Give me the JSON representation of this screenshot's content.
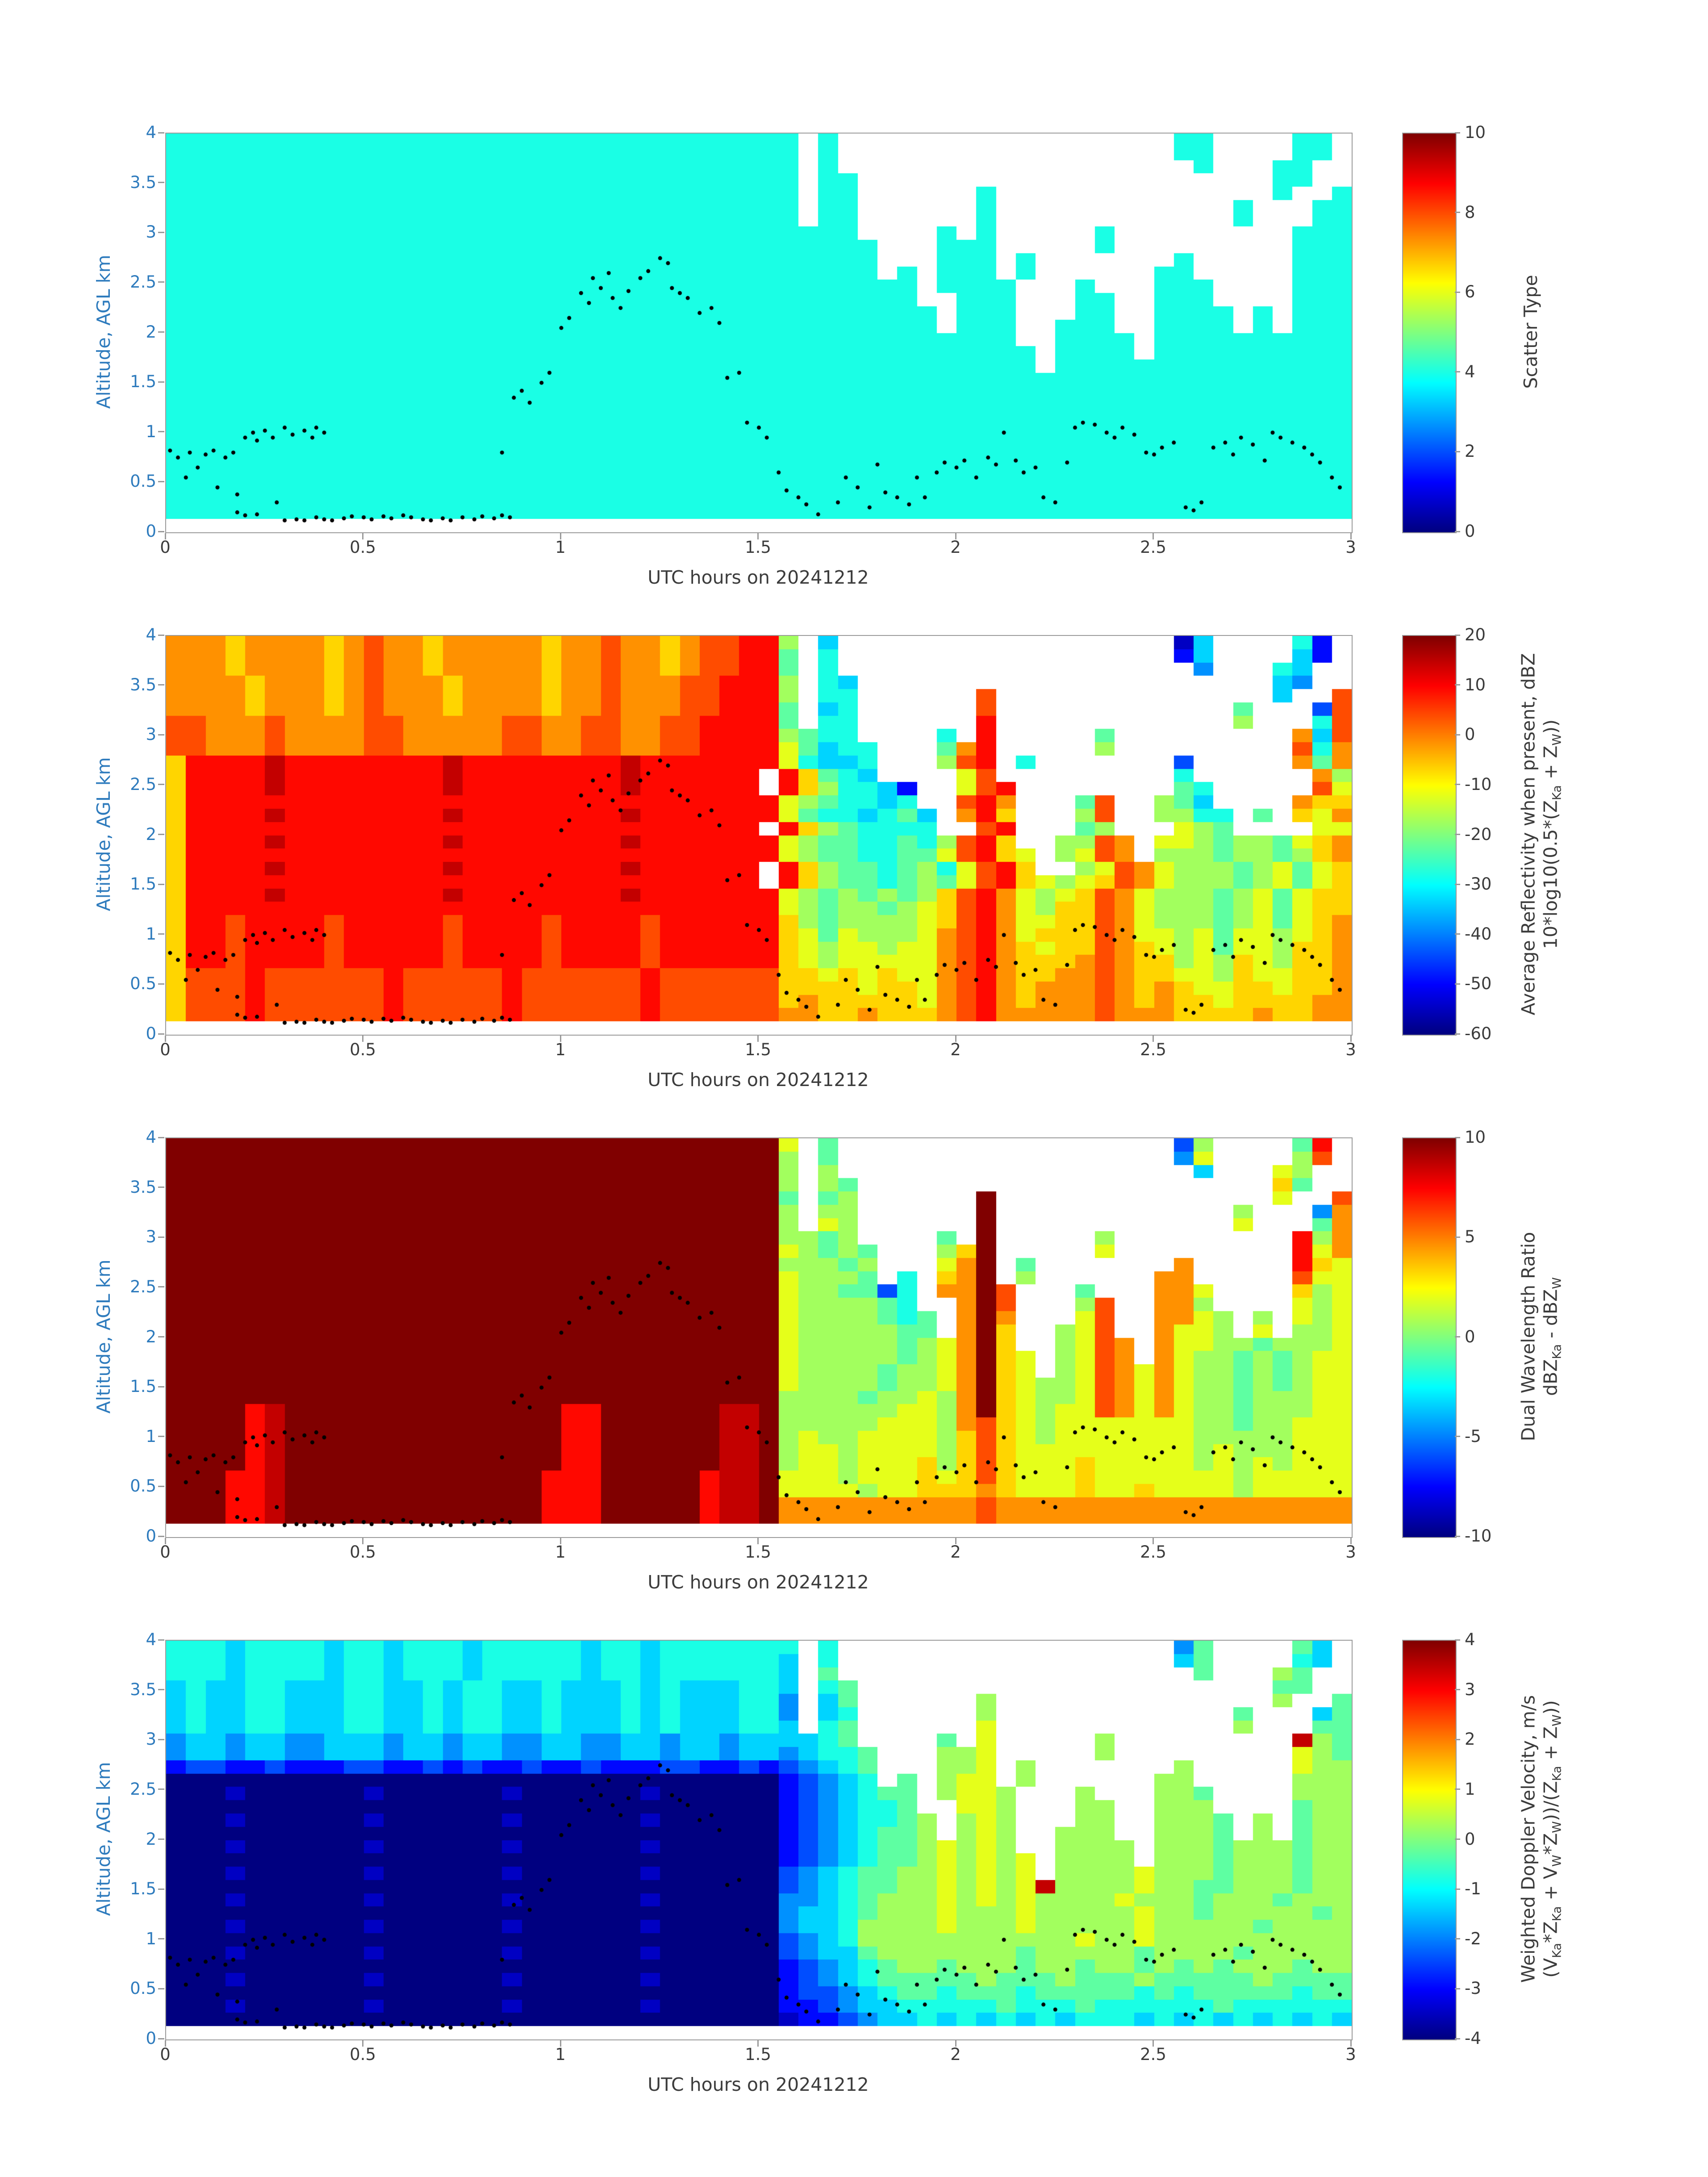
{
  "style": {
    "y_axis_color": "#2e7bbd",
    "x_axis_color": "#3c3c3c",
    "frame_color": "#9a9a9a",
    "dot_color": "#000000",
    "background": "#ffffff",
    "colormap": "jet"
  },
  "encoding": {
    "chars": "0123456789abcdef",
    "no_data": ".",
    "note": "each grid char index/15 maps linearly from colorbar min to max through the jet colormap; '.' or mask 0 = white (no data)",
    "grid_cols": 60,
    "grid_rows": 30,
    "x_range_hours": [
      0,
      3
    ],
    "alt_range_km_top_to_bottom": [
      4,
      0
    ]
  },
  "detection_mask": {
    "rows": [
      "111111111111111111111111111111110100000000000000000110000110",
      "111111111111111111111111111111110100000000000000000110000110",
      "111111111111111111111111111111110100000000000000000010001100",
      "111111111111111111111111111111110110000000000000000000001100",
      "111111111111111111111111111111110110000001000000000000001001",
      "111111111111111111111111111111110110000001000000000000100011",
      "111111111111111111111111111111110110000001000000000000100011",
      "111111111111111111111111111111111110000101000001000000000111",
      "111111111111111111111111111111111111000111000001000000000111",
      "111111111111111111111111111111111111000111010000000100000111",
      "111111111111111111111111111111111111010111010000001100000111",
      "111111111111111111111111111111111111110111100010001110000111",
      "111111111111111111111111111111111111110011100011001110000111",
      "111111111111111111111111111111111111111011100011001111010111",
      "111111111111111111111111111111111111111011100111001111010111",
      "111111111111111111111111111111111111111111100111101111111111",
      "111111111111111111111111111111111111111111110111101111111111",
      "111111111111111111111111111111111111111111110111111111111111",
      "111111111111111111111111111111111111111111111111111111111111",
      "111111111111111111111111111111111111111111111111111111111111",
      "111111111111111111111111111111111111111111111111111111111111",
      "111111111111111111111111111111111111111111111111111111111111",
      "111111111111111111111111111111111111111111111111111111111111",
      "111111111111111111111111111111111111111111111111111111111111",
      "111111111111111111111111111111111111111111111111111111111111",
      "111111111111111111111111111111111111111111111111111111111111",
      "111111111111111111111111111111111111111111111111111111111111",
      "111111111111111111111111111111111111111111111111111111111111",
      "111111111111111111111111111111111111111111111111111111111111",
      "000000000000000000000000000000000000000000000000000000000000"
    ]
  },
  "overlay_dots": [
    [
      0.01,
      0.82
    ],
    [
      0.03,
      0.75
    ],
    [
      0.05,
      0.55
    ],
    [
      0.06,
      0.8
    ],
    [
      0.08,
      0.65
    ],
    [
      0.1,
      0.78
    ],
    [
      0.12,
      0.82
    ],
    [
      0.13,
      0.45
    ],
    [
      0.15,
      0.75
    ],
    [
      0.17,
      0.8
    ],
    [
      0.18,
      0.38
    ],
    [
      0.18,
      0.2
    ],
    [
      0.2,
      0.95
    ],
    [
      0.2,
      0.17
    ],
    [
      0.22,
      1.0
    ],
    [
      0.23,
      0.92
    ],
    [
      0.23,
      0.18
    ],
    [
      0.25,
      1.02
    ],
    [
      0.27,
      0.95
    ],
    [
      0.28,
      0.3
    ],
    [
      0.3,
      1.05
    ],
    [
      0.3,
      0.12
    ],
    [
      0.32,
      0.98
    ],
    [
      0.33,
      0.13
    ],
    [
      0.35,
      1.02
    ],
    [
      0.35,
      0.12
    ],
    [
      0.37,
      0.95
    ],
    [
      0.38,
      1.05
    ],
    [
      0.38,
      0.15
    ],
    [
      0.4,
      1.0
    ],
    [
      0.4,
      0.13
    ],
    [
      0.42,
      0.12
    ],
    [
      0.45,
      0.14
    ],
    [
      0.47,
      0.16
    ],
    [
      0.5,
      0.15
    ],
    [
      0.52,
      0.13
    ],
    [
      0.55,
      0.16
    ],
    [
      0.57,
      0.14
    ],
    [
      0.6,
      0.17
    ],
    [
      0.62,
      0.15
    ],
    [
      0.65,
      0.13
    ],
    [
      0.67,
      0.12
    ],
    [
      0.7,
      0.14
    ],
    [
      0.72,
      0.12
    ],
    [
      0.75,
      0.15
    ],
    [
      0.78,
      0.13
    ],
    [
      0.8,
      0.16
    ],
    [
      0.83,
      0.14
    ],
    [
      0.85,
      0.17
    ],
    [
      0.87,
      0.15
    ],
    [
      0.85,
      0.8
    ],
    [
      0.88,
      1.35
    ],
    [
      0.9,
      1.42
    ],
    [
      0.92,
      1.3
    ],
    [
      0.95,
      1.5
    ],
    [
      0.97,
      1.6
    ],
    [
      1.0,
      2.05
    ],
    [
      1.02,
      2.15
    ],
    [
      1.05,
      2.4
    ],
    [
      1.07,
      2.3
    ],
    [
      1.08,
      2.55
    ],
    [
      1.1,
      2.45
    ],
    [
      1.12,
      2.6
    ],
    [
      1.13,
      2.35
    ],
    [
      1.15,
      2.25
    ],
    [
      1.17,
      2.42
    ],
    [
      1.2,
      2.55
    ],
    [
      1.22,
      2.62
    ],
    [
      1.25,
      2.75
    ],
    [
      1.27,
      2.7
    ],
    [
      1.28,
      2.45
    ],
    [
      1.3,
      2.4
    ],
    [
      1.32,
      2.35
    ],
    [
      1.35,
      2.2
    ],
    [
      1.38,
      2.25
    ],
    [
      1.4,
      2.1
    ],
    [
      1.42,
      1.55
    ],
    [
      1.45,
      1.6
    ],
    [
      1.47,
      1.1
    ],
    [
      1.5,
      1.05
    ],
    [
      1.52,
      0.95
    ],
    [
      1.55,
      0.6
    ],
    [
      1.57,
      0.42
    ],
    [
      1.6,
      0.35
    ],
    [
      1.62,
      0.28
    ],
    [
      1.65,
      0.18
    ],
    [
      1.7,
      0.3
    ],
    [
      1.72,
      0.55
    ],
    [
      1.75,
      0.45
    ],
    [
      1.78,
      0.25
    ],
    [
      1.8,
      0.68
    ],
    [
      1.82,
      0.4
    ],
    [
      1.85,
      0.35
    ],
    [
      1.88,
      0.28
    ],
    [
      1.9,
      0.55
    ],
    [
      1.92,
      0.35
    ],
    [
      1.95,
      0.6
    ],
    [
      1.97,
      0.7
    ],
    [
      2.0,
      0.65
    ],
    [
      2.02,
      0.72
    ],
    [
      2.05,
      0.55
    ],
    [
      2.08,
      0.75
    ],
    [
      2.1,
      0.68
    ],
    [
      2.12,
      1.0
    ],
    [
      2.15,
      0.72
    ],
    [
      2.17,
      0.6
    ],
    [
      2.2,
      0.65
    ],
    [
      2.22,
      0.35
    ],
    [
      2.25,
      0.3
    ],
    [
      2.28,
      0.7
    ],
    [
      2.3,
      1.05
    ],
    [
      2.32,
      1.1
    ],
    [
      2.35,
      1.08
    ],
    [
      2.38,
      1.0
    ],
    [
      2.4,
      0.95
    ],
    [
      2.42,
      1.05
    ],
    [
      2.45,
      0.98
    ],
    [
      2.48,
      0.8
    ],
    [
      2.5,
      0.78
    ],
    [
      2.52,
      0.85
    ],
    [
      2.55,
      0.9
    ],
    [
      2.58,
      0.25
    ],
    [
      2.6,
      0.22
    ],
    [
      2.62,
      0.3
    ],
    [
      2.65,
      0.85
    ],
    [
      2.68,
      0.9
    ],
    [
      2.7,
      0.78
    ],
    [
      2.72,
      0.95
    ],
    [
      2.75,
      0.88
    ],
    [
      2.78,
      0.72
    ],
    [
      2.8,
      1.0
    ],
    [
      2.82,
      0.95
    ],
    [
      2.85,
      0.9
    ],
    [
      2.88,
      0.85
    ],
    [
      2.9,
      0.78
    ],
    [
      2.92,
      0.7
    ],
    [
      2.95,
      0.55
    ],
    [
      2.97,
      0.45
    ]
  ],
  "chart_data": [
    {
      "type": "heatmap",
      "panel": "scatter-type",
      "title": "",
      "xlabel": "UTC hours on 20241212",
      "ylabel": "Altitude, AGL km",
      "xlim": [
        0,
        3
      ],
      "ylim": [
        0,
        4
      ],
      "xticks": [
        0,
        0.5,
        1,
        1.5,
        2,
        2.5,
        3
      ],
      "yticks": [
        0,
        0.5,
        1,
        1.5,
        2,
        2.5,
        3,
        3.5,
        4
      ],
      "grid": {
        "mode": "constant",
        "char": "6"
      },
      "colorbar": {
        "min": 0,
        "max": 10,
        "ticks": [
          10,
          8,
          6,
          4,
          2,
          0
        ],
        "label_lines": [
          [
            {
              "t": "Scatter Type"
            }
          ]
        ]
      }
    },
    {
      "type": "heatmap",
      "panel": "average-reflectivity",
      "title": "",
      "xlabel": "UTC hours on 20241212",
      "ylabel": "Altitude, AGL km",
      "xlim": [
        0,
        3
      ],
      "ylim": [
        0,
        4
      ],
      "xticks": [
        0,
        0.5,
        1,
        1.5,
        2,
        2.5,
        3
      ],
      "yticks": [
        0,
        0.5,
        1,
        1.5,
        2,
        2.5,
        3,
        3.5,
        4
      ],
      "grid": {
        "mode": "rows",
        "rows": [
          "bbbabbbbabcbbabbbbbabbcbbabccdd8.5.................15....62.",
          "bbbabbbbabcbbabbbbbabbcbbabccdd7.6.................25....52.",
          "bbbabbbbabcbbabbbbbabbcbbabccdd7.6..................4...65..",
          "bbbbabbbabcbbbabbbbabbcbbbccddd8.65.....................54..",
          "bbbbabbbabcbbbabbbbabbcbbbccddd8.66......c..............5..c",
          "bbbbabbbabcbbbabbbbabbcbbbccddd7.56......c............7...3c",
          "ccbbbcbbbbccbbbbbccbbccbbccdddd7.66......d............8...6c",
          "ccbbbcbbbbccbbbbbccbbccbbccdddd8766....6.d.....7.........b5c",
          "ccbbbcbbbbccbbbbbccbbccbbccdddd97566...7bd.....8.........c6b",
          "addddeddddddddeddddddddeddddddd96556...8cd.6.......3.....b7b",
          "addddeddddddddeddddddddedddddd da7656.4.9cd.7......65.....b8a",
          "addddeddddddddeddddddddedddddd da866525.9cdb...6...764....c9a",
          "adddddddddddddddddddddddddddddd9876656..cdb...7c..875....baa",
          "addddeddddddddeddddddddeddddddd97665675.bda...8c..8866.7.a9b",
          "addddddddddddddddddddddddddddd da8766666.cda..78c..9877.8.99b",
          "addddeddddddddeddddddddeddddddd987766768cda..88cb.99878879ab",
          "adddddddddddddddddddddddddddddd987766779cda9.89cb.88878878ab",
          "addddeddddddddeddddddddedddddd da87767869cda9.89cb988878979ab",
          "addddddddddddddddddddddddddddd da87767879cda989acb988878979ab",
          "addddeddddddddeddddddddeddddddd98787878acdb989acb988878979aa",
          "adddddddddddddddddddddddddddddd98788789acdb98aacb988878979aa",
          "addcddddcdddddcddddcddddcdddddda8788889acdb99aacb988878979ab",
          "addcddddcdddddcddddcddddcdddddda9798889bcdb9aaacb998979989ab",
          "addcddddcdddddcddddcddddcdddddda9899899bcdba9aacba9897998aab",
          "addcddddcdddddcddddcddddcdddddda9899999bcdbaaabcbaa898a98aab",
          "acccdccccccdcccccdccccccdccccccaa9a9a99bcdbaabbcbaa998a99aab",
          "acccdccccccdcccccdccccccdccccccaaaa9aa9bcdbabbbcbaba99aa9aab",
          "acccdccccccdcccccdccccccdccccccabaaaaa9bcdbabbbcbabaa9aaaabb",
          "acccdccccccdcccccdccccccdccccccbbaabaaabcdbbbbbcbbbaaaabaabb",
          "............................................................"
        ]
      },
      "colorbar": {
        "min": -60,
        "max": 20,
        "ticks": [
          20,
          10,
          0,
          -10,
          -20,
          -30,
          -40,
          -50,
          -60
        ],
        "label_lines": [
          [
            {
              "t": "Average Reflectivity when present, dBZ"
            }
          ],
          [
            {
              "t": "10*log10(0.5*(Z"
            },
            {
              "sub": "Ka"
            },
            {
              "t": " + Z"
            },
            {
              "sub": "W"
            },
            {
              "t": "))"
            }
          ]
        ]
      }
    },
    {
      "type": "heatmap",
      "panel": "dual-wavelength-ratio",
      "title": "",
      "xlabel": "UTC hours on 20241212",
      "ylabel": "Altitude, AGL km",
      "xlim": [
        0,
        3
      ],
      "ylim": [
        0,
        4
      ],
      "xticks": [
        0,
        0.5,
        1,
        1.5,
        2,
        2.5,
        3
      ],
      "yticks": [
        0,
        0.5,
        1,
        1.5,
        2,
        2.5,
        3,
        3.5,
        4
      ],
      "grid": {
        "mode": "rows",
        "rows": [
          "fffffffffffffffffffffffffffffff9.7.................38....7d.",
          "fffffffffffffffffffffffffffffff8.7.................49....8c.",
          "fffffffffffffffffffffffffffffff8.8..................5...98..",
          "fffffffffffffffffffffffffffffff8.87.....................a7..",
          "fffffffffffffffffffffffffffffff7.78......f..............9..c",
          "fffffffffffffffffffffffffffffff8.88......f............8...4b",
          "fffffffffffffffffffffffffffffff8.98......f............9...7b",
          "fffffffffffffffffffffffffffffff8878....7.f.....8.........d8b",
          "fffffffffffffffffffffffffffffff98787...8af.....9.........d9b",
          "fffffffffffffffffffffffffffffff88878...9bf.7.......b.....da9",
          "fffffffffffffffffffffffffffffff98887.6.abf.8......bb.....c99",
          "fffffffffffffffffffffffffffffff9887736.bbfc...7...bb9....a89",
          "fffffffffffffffffffffffffffffff9888876..bfc...8c..bb8....989",
          "fffffffffffffffffffffffffffffff98888767.bfb...9c..bb98.8.989",
          "fffffffffffffffffffffffffffffff98888877.bfa..89c..b998.9.889",
          "fffffffffffffffffffffffffffffff988888789bfa..89cb.b998878889",
          "fffffffffffffffffffffffffffffff988888789bfa9.89cb.b988787899",
          "fffffffffffffffffffffffffffffff988887889bfa9.89cb9b988787899",
          "fffffffffffffffffffffffffffffff988887889bfa9889cb9b988787899",
          "fffffffffffffffffffffffffffffff888878898bfa9889cb9b988788899",
          "ffffdeffffffffffffffddffffffeef888888998bfa9899cb9b988788899",
          "ffffdeffffffffffffffddffffffeef888889998bca98999999988788999",
          "ffffdeffffffffffffffddffffffeef898899998aca98999999988888999",
          "ffffdeffffffffffffffddffffffeef899899998aca99999999989888999",
          "ffffdeffffffffffffffddffffffeef8998999a8aca999a9999989898999",
          "fffddefffffffffffffdddfffffdeef9998999a9aca999a9999999899999",
          "fffddefffffffffffffdddfffffdeef9999899aaaba999a99a9999899999",
          "fffddefffffffffffffdddfffffdeefbbbbbbbbbbcbbbbbbbbbbbbbbbbbb",
          "fffddefffffffffffffdddfffffdeefbbbbbbbbbbcbbbbbbbbbbbbbbbbbb",
          "............................................................"
        ]
      },
      "colorbar": {
        "min": -10,
        "max": 10,
        "ticks": [
          10,
          5,
          0,
          -5,
          -10
        ],
        "label_lines": [
          [
            {
              "t": "Dual Wavelength Ratio"
            }
          ],
          [
            {
              "t": "dBZ"
            },
            {
              "sub": "Ka"
            },
            {
              "t": " - dBZ"
            },
            {
              "sub": "W"
            }
          ]
        ]
      }
    },
    {
      "type": "heatmap",
      "panel": "weighted-doppler-velocity",
      "title": "",
      "xlabel": "UTC hours on 20241212",
      "ylabel": "Altitude, AGL km",
      "xlim": [
        0,
        3
      ],
      "ylim": [
        0,
        4
      ],
      "xticks": [
        0,
        0.5,
        1,
        1.5,
        2,
        2.5,
        3
      ],
      "yticks": [
        0,
        0.5,
        1,
        1.5,
        2,
        2.5,
        3,
        3.5,
        4
      ],
      "grid": {
        "mode": "rows",
        "rows": [
          "66656666566566656666656656666666.6.................47....75.",
          "66656666566566656666656656666665.6.................57....65.",
          "66656666566566656666656656666665.7..................7...87..",
          "56556655566556566556555656555665.67.....................77..",
          "56556655566556566556555656555664.57......8..............8..7",
          "56556655566556566556555656555664.56......8............7...57",
          "56556655566556566556555656555665.67......9............8...77",
          "45545544555455455445544554554555567....7.9.....8.........e87",
          "455455445554554554455445545545545667...889.....8.........987",
          "233223222332232322322322233223234567...889.8.......8.....988",
          "000000000000000000000000000000023456.7.899.8......88.....888",
          "00010000001000000100000010000002345677.8998...8...887....888",
          "00000000000000000000000000000002345667..998...88..888....788",
          "000100000010000001000000100000023456678.898...88..8887.8.788",
          "000000000000000000000000000000023456778.898..888..8887.8.788",
          "0001000000100000010000001000000234567789898..8888.8887888788",
          "00000000000000000000000000000002345677898989.8888.8887888788",
          "00010000001000000100000010000003456778898989.888898887888788",
          "00000000000000000000000000000003456778898989e888898877888788",
          "000100000010000001000000100000044567888989898888988878887888",
          "000000000000000000000000000000045567888988898888898878888878",
          "000100000010000001000000100000045568888988898888898888878888",
          "000000000000000000000000000000034568888888888898898888888888",
          "000100000010000001000000100000034557888888878888878888788888",
          "000000000000000000000000000000023456788788878878878787888788",
          "000100000010000001000000100000023456777778777877787777787777",
          "000000000000000000000000000000023345677677767777767677777677",
          "000100000010000001000000100000022345566666766676666667666666",
          "000000000000000000000000000000012234556565656566656565656565",
          "............................................................"
        ]
      },
      "colorbar": {
        "min": -4,
        "max": 4,
        "ticks": [
          4,
          3,
          2,
          1,
          0,
          -1,
          -2,
          -3,
          -4
        ],
        "label_lines": [
          [
            {
              "t": "Weighted Doppler Velocity, m/s"
            }
          ],
          [
            {
              "t": "(V"
            },
            {
              "sub": "Ka"
            },
            {
              "t": "*Z"
            },
            {
              "sub": "Ka"
            },
            {
              "t": " + V"
            },
            {
              "sub": "W"
            },
            {
              "t": "*Z"
            },
            {
              "sub": "W"
            },
            {
              "t": "))/(Z"
            },
            {
              "sub": "Ka"
            },
            {
              "t": " + Z"
            },
            {
              "sub": "W"
            },
            {
              "t": "))"
            }
          ]
        ]
      }
    }
  ]
}
